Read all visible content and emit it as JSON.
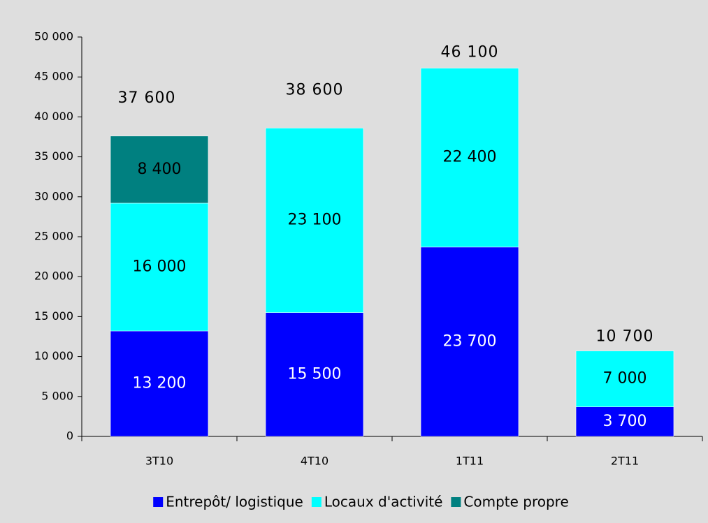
{
  "chart_data": {
    "type": "stacked_bar",
    "categories": [
      "3T10",
      "4T10",
      "1T11",
      "2T11"
    ],
    "series": [
      {
        "name": "Entrepôt/ logistique",
        "color": "#0000ff",
        "values": [
          13200,
          15500,
          23700,
          3700
        ],
        "value_labels": [
          "13 200",
          "15 500",
          "23 700",
          "3 700"
        ]
      },
      {
        "name": "Locaux d'activité",
        "color": "#00ffff",
        "values": [
          16000,
          23100,
          22400,
          7000
        ],
        "value_labels": [
          "16 000",
          "23 100",
          "22 400",
          "7 000"
        ]
      },
      {
        "name": "Compte propre",
        "color": "#008080",
        "values": [
          8400,
          null,
          null,
          null
        ],
        "value_labels": [
          "8 400",
          null,
          null,
          null
        ]
      }
    ],
    "totals": [
      37600,
      38600,
      46100,
      10700
    ],
    "total_labels": [
      "37 600",
      "38 600",
      "46 100",
      "10 700"
    ],
    "ylim": [
      0,
      50000
    ],
    "yticks": [
      0,
      {
        "value": 5000,
        "label": "5 000"
      },
      {
        "value": 10000,
        "label": "10 000"
      },
      {
        "value": 15000,
        "label": "15 000"
      },
      {
        "value": 20000,
        "label": "20 000"
      },
      {
        "value": 25000,
        "label": "25 000"
      },
      {
        "value": 30000,
        "label": "30 000"
      },
      {
        "value": 35000,
        "label": "35 000"
      },
      {
        "value": 40000,
        "label": "40 000"
      },
      {
        "value": 45000,
        "label": "45 000"
      },
      {
        "value": 50000,
        "label": "50 000"
      }
    ],
    "legend": "bottom"
  }
}
